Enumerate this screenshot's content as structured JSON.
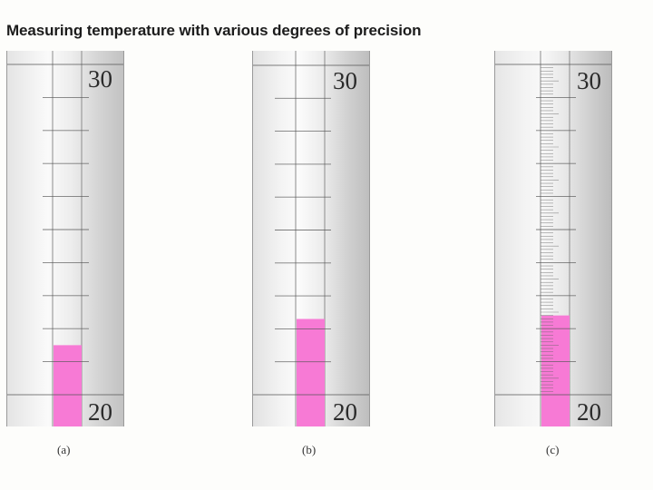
{
  "title": "Measuring temperature with various degrees of precision",
  "thermometers": [
    {
      "caption": "(a)",
      "top_label": "30",
      "bottom_label": "20",
      "reading": 21.5,
      "minor_divisions": 1,
      "colors": {
        "fill": "#f77ad5"
      }
    },
    {
      "caption": "(b)",
      "top_label": "30",
      "bottom_label": "20",
      "reading": 22.3,
      "minor_divisions": 1,
      "colors": {
        "fill": "#f77ad5"
      }
    },
    {
      "caption": "(c)",
      "top_label": "30",
      "bottom_label": "20",
      "reading": 22.4,
      "minor_divisions": 10,
      "colors": {
        "fill": "#f77ad5"
      }
    }
  ]
}
